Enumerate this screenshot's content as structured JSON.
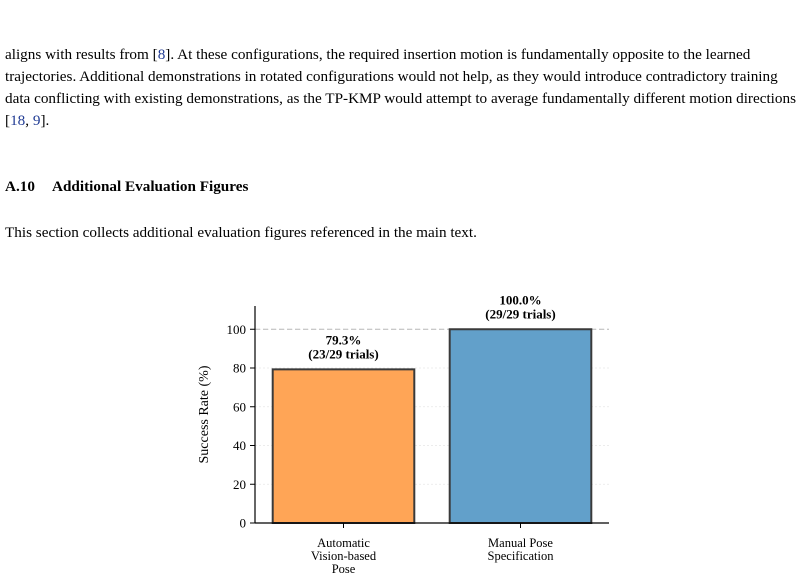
{
  "paragraph_top": {
    "part1": "aligns with results from [",
    "cite1": "8",
    "part2": "]. At these configurations, the required insertion motion is fundamentally opposite to the learned trajectories. Additional demonstrations in rotated configurations would not help, as they would introduce contradictory training data conflicting with existing demonstrations, as the TP-KMP would attempt to average fundamentally different motion directions [",
    "cite2": "18",
    "sep": ", ",
    "cite3": "9",
    "part3": "]."
  },
  "section": {
    "number": "A.10",
    "title": "Additional Evaluation Figures"
  },
  "paragraph_intro": "This section collects additional evaluation figures referenced in the main text.",
  "chart_data": {
    "type": "bar",
    "categories": [
      [
        "Automatic",
        "Vision-based",
        "Pose"
      ],
      [
        "Manual Pose",
        "Specification"
      ]
    ],
    "values": [
      79.3,
      100.0
    ],
    "data_labels": [
      [
        "79.3%",
        "(23/29 trials)"
      ],
      [
        "100.0%",
        "(29/29 trials)"
      ]
    ],
    "colors": [
      "#FFA556",
      "#62A0CA"
    ],
    "edge_color": "#3a3a3a",
    "ylabel": "Success Rate (%)",
    "yticks": [
      0,
      20,
      40,
      60,
      80,
      100
    ],
    "ylim": [
      0,
      112
    ],
    "reference_line": 100,
    "grid": true
  }
}
